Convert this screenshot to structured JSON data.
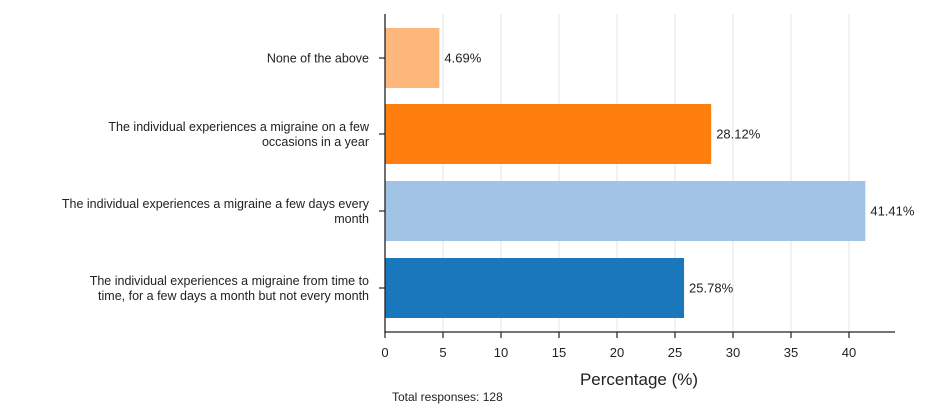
{
  "chart_data": {
    "type": "bar",
    "orientation": "horizontal",
    "categories": [
      [
        "None of the above"
      ],
      [
        "The individual experiences a migraine on a few",
        "occasions in a year"
      ],
      [
        "The individual experiences a migraine a few days every",
        "month"
      ],
      [
        "The individual experiences a migraine from time to",
        "time, for a few days a month but not every month"
      ]
    ],
    "values": [
      4.69,
      28.12,
      41.41,
      25.78
    ],
    "value_labels": [
      "4.69%",
      "28.12%",
      "41.41%",
      "25.78%"
    ],
    "colors": [
      "#fdb77a",
      "#ff7f0e",
      "#a1c4e6",
      "#1a77bb"
    ],
    "xlabel": "Percentage (%)",
    "xlim": [
      0,
      44
    ],
    "xticks": [
      0,
      5,
      10,
      15,
      20,
      25,
      30,
      35,
      40
    ],
    "grid": "vertical",
    "footnote": "Total responses: 128"
  }
}
